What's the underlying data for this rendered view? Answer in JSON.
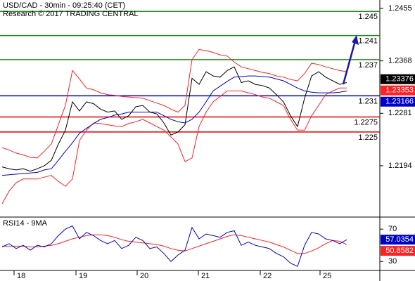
{
  "chart_data": [
    {
      "type": "line",
      "title": "USD/CAD - 30min - 09:25:40 (CET)",
      "subtitle": "Research © 2017 TRADING CENTRAL",
      "xlim": [
        -0.3,
        53.7
      ],
      "ylim": [
        1.211,
        1.2469
      ],
      "yticks": [
        1.2455,
        1.2368,
        1.2281,
        1.2194
      ],
      "x": [
        0,
        1,
        2,
        3,
        4,
        5,
        6,
        7,
        8,
        9,
        10,
        11,
        12,
        13,
        14,
        15,
        16,
        17,
        18,
        19,
        20,
        21,
        22,
        23,
        24,
        25,
        26,
        27,
        28,
        29,
        30,
        31,
        32,
        33,
        34,
        35,
        36,
        37,
        38,
        39,
        40,
        41,
        42,
        43,
        44,
        45,
        46,
        47,
        48,
        49
      ],
      "series": [
        {
          "color": "#ff2020",
          "values": [
            1.2224,
            1.222,
            1.2215,
            1.2212,
            1.2208,
            1.2207,
            1.2218,
            1.223,
            1.2262,
            1.2294,
            1.2352,
            1.2338,
            1.2323,
            1.232,
            1.2315,
            1.2312,
            1.2311,
            1.2309,
            1.2308,
            1.2307,
            1.2306,
            1.2302,
            1.2298,
            1.2294,
            1.2288,
            1.2283,
            1.2294,
            1.237,
            1.2387,
            1.2385,
            1.2382,
            1.2378,
            1.2376,
            1.2366,
            1.2358,
            1.2355,
            1.2352,
            1.2349,
            1.2347,
            1.2343,
            1.2341,
            1.2337,
            1.2335,
            1.2347,
            1.2364,
            1.2362,
            1.2358,
            1.2355,
            1.2352,
            1.235
          ]
        },
        {
          "color": "#ff2020",
          "values": [
            1.2131,
            1.2152,
            1.2166,
            1.2172,
            1.2172,
            1.2172,
            1.2175,
            1.2178,
            1.2168,
            1.216,
            1.2172,
            1.2236,
            1.2253,
            1.2265,
            1.2264,
            1.2262,
            1.226,
            1.2259,
            1.2264,
            1.2267,
            1.2271,
            1.2265,
            1.2259,
            1.2253,
            1.2242,
            1.223,
            1.2201,
            1.2207,
            1.2259,
            1.2283,
            1.23,
            1.2309,
            1.2318,
            1.2318,
            1.2318,
            1.2315,
            1.2312,
            1.2308,
            1.2306,
            1.23,
            1.2294,
            1.2271,
            1.2253,
            1.2253,
            1.2277,
            1.2294,
            1.2312,
            1.2318,
            1.2323,
            1.2323
          ]
        },
        {
          "color": "#0000cc",
          "values": [
            1.2178,
            1.2179,
            1.218,
            1.2181,
            1.2182,
            1.2183,
            1.2187,
            1.2189,
            1.2203,
            1.2218,
            1.2232,
            1.2248,
            1.2256,
            1.2264,
            1.2271,
            1.2274,
            1.2278,
            1.228,
            1.2283,
            1.2283,
            1.2283,
            1.2283,
            1.2283,
            1.2277,
            1.2271,
            1.2267,
            1.2265,
            1.2271,
            1.2283,
            1.23,
            1.2318,
            1.2326,
            1.2334,
            1.2341,
            1.2342,
            1.2343,
            1.2343,
            1.2342,
            1.2341,
            1.2338,
            1.2335,
            1.2329,
            1.2323,
            1.2318,
            1.2316,
            1.2315,
            1.2315,
            1.2315,
            1.2316,
            1.2318
          ]
        },
        {
          "color": "#000000",
          "values": [
            1.2192,
            1.2189,
            1.2187,
            1.2189,
            1.2185,
            1.2189,
            1.2194,
            1.2203,
            1.223,
            1.2253,
            1.23,
            1.2285,
            1.23,
            1.2297,
            1.2288,
            1.2283,
            1.2285,
            1.2271,
            1.2277,
            1.2292,
            1.2294,
            1.2283,
            1.228,
            1.2265,
            1.2245,
            1.225,
            1.2262,
            1.2339,
            1.2329,
            1.235,
            1.2343,
            1.2341,
            1.2352,
            1.2358,
            1.2332,
            1.2335,
            1.2329,
            1.2327,
            1.2323,
            1.2312,
            1.23,
            1.2277,
            1.2259,
            1.2306,
            1.2343,
            1.235,
            1.2341,
            1.2335,
            1.2329,
            1.2332
          ]
        }
      ],
      "levels": [
        {
          "value": 1.245,
          "color": "#1e8c1e"
        },
        {
          "value": 1.241,
          "color": "#1e8c1e"
        },
        {
          "value": 1.237,
          "color": "#1e8c1e"
        },
        {
          "value": 1.231,
          "color": "#0000cc"
        },
        {
          "value": 1.2275,
          "color": "#e00000"
        },
        {
          "value": 1.225,
          "color": "#e00000"
        }
      ],
      "last_values": [
        {
          "value": 1.23376,
          "color": "#000000"
        },
        {
          "value": 1.23353,
          "color": "#ff2020"
        },
        {
          "value": 1.23166,
          "color": "#0000cc"
        }
      ]
    },
    {
      "type": "line",
      "title": "RSI14 - 9MA",
      "xlim": [
        -0.3,
        53.7
      ],
      "ylim": [
        19,
        84
      ],
      "yticks": [
        70,
        30
      ],
      "xticks": [
        {
          "value": 1.7,
          "label": "18"
        },
        {
          "value": 10.5,
          "label": "19"
        },
        {
          "value": 19.2,
          "label": "20"
        },
        {
          "value": 27.9,
          "label": "21"
        },
        {
          "value": 36.7,
          "label": "22"
        },
        {
          "value": 45.2,
          "label": "25"
        }
      ],
      "x": [
        0,
        1,
        2,
        3,
        4,
        5,
        6,
        7,
        8,
        9,
        10,
        11,
        12,
        13,
        14,
        15,
        16,
        17,
        18,
        19,
        20,
        21,
        22,
        23,
        24,
        25,
        26,
        27,
        28,
        29,
        30,
        31,
        32,
        33,
        34,
        35,
        36,
        37,
        38,
        39,
        40,
        41,
        42,
        43,
        44,
        45,
        46,
        47,
        48,
        49
      ],
      "series": [
        {
          "color": "#ff2020",
          "values": [
            49,
            49,
            49,
            49,
            48,
            48,
            49,
            50,
            52,
            55,
            58,
            60,
            62,
            63,
            63,
            62,
            60,
            57,
            55,
            54,
            53,
            52,
            51,
            49,
            46,
            44,
            43,
            46,
            49,
            52,
            55,
            58,
            61,
            63,
            62,
            60,
            58,
            56,
            54,
            51,
            48,
            44,
            40,
            40,
            43,
            47,
            52,
            56,
            55,
            51
          ]
        },
        {
          "color": "#0000cc",
          "values": [
            48,
            52,
            46,
            50,
            44,
            50,
            48,
            52,
            62,
            70,
            74,
            58,
            66,
            62,
            56,
            52,
            56,
            46,
            50,
            60,
            56,
            46,
            48,
            40,
            30,
            38,
            44,
            72,
            58,
            64,
            62,
            60,
            66,
            68,
            50,
            54,
            50,
            48,
            46,
            40,
            36,
            28,
            24,
            50,
            66,
            64,
            58,
            56,
            52,
            57
          ]
        }
      ],
      "last_values": [
        {
          "value": 57.0354,
          "color": "#0000cc"
        },
        {
          "value": 50.8582,
          "color": "#ff2020"
        }
      ]
    }
  ]
}
